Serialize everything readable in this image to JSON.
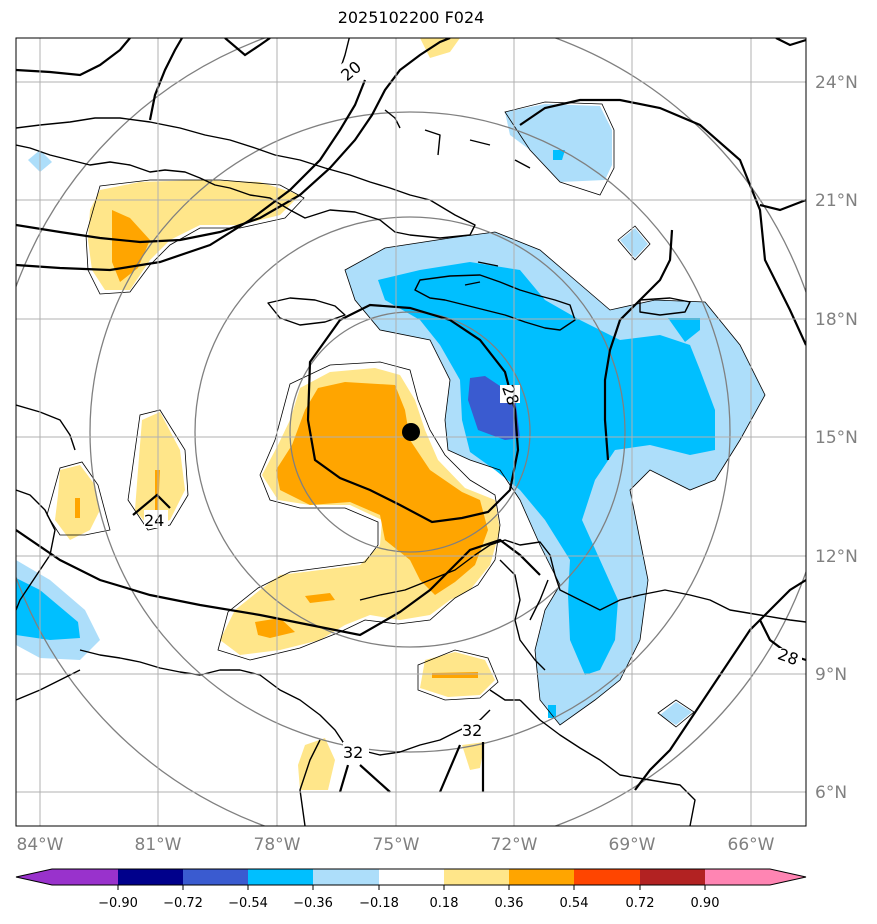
{
  "title": "2025102200 F024",
  "lat_labels": [
    "24°N",
    "21°N",
    "18°N",
    "15°N",
    "12°N",
    "9°N",
    "6°N"
  ],
  "lon_labels": [
    "84°W",
    "81°W",
    "78°W",
    "75°W",
    "72°W",
    "69°W",
    "66°W"
  ],
  "contour_labels": [
    "20",
    "28",
    "24",
    "28",
    "32",
    "32"
  ],
  "colorbar": {
    "ticks": [
      "−0.90",
      "−0.72",
      "−0.54",
      "−0.36",
      "−0.18",
      "0.18",
      "0.36",
      "0.54",
      "0.72",
      "0.90"
    ],
    "colors": [
      "#9932CC",
      "#00008B",
      "#3A5BD0",
      "#00BFFF",
      "#ADDEFA",
      "#FFFFFF",
      "#FFE68A",
      "#FFA500",
      "#FF4500",
      "#B22222",
      "#FF85B3"
    ]
  },
  "storm_center": {
    "lat": 15.1,
    "lon": -74.7
  }
}
